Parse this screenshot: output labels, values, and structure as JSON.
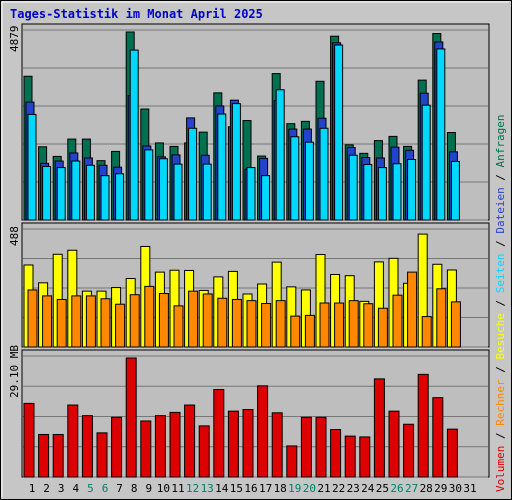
{
  "title": "Tages-Statistik im Monat April 2025",
  "colors": {
    "title": "#0000cc",
    "plot_bg": "#bebebe",
    "grid": "#777777",
    "anfragen": "#007050",
    "dateien": "#2244cc",
    "seiten": "#00d8ff",
    "besuche": "#ffff00",
    "rechner": "#ff8800",
    "volumen": "#dd0000",
    "weekend_day": "#00806a",
    "weekday": "#000000"
  },
  "chart_data": [
    {
      "type": "bar",
      "name": "Anfragen / Dateien / Seiten",
      "ymax_label": "4879",
      "ylim": [
        0,
        4879
      ],
      "categories": [
        "1",
        "2",
        "3",
        "4",
        "5",
        "6",
        "7",
        "8",
        "9",
        "10",
        "11",
        "12",
        "13",
        "14",
        "15",
        "16",
        "17",
        "18",
        "19",
        "20",
        "21",
        "22",
        "23",
        "24",
        "25",
        "26",
        "27",
        "28",
        "29",
        "30"
      ],
      "series": [
        {
          "name": "Anfragen",
          "color": "#007050",
          "values": [
            3730,
            1900,
            1650,
            2100,
            2100,
            1540,
            1780,
            4879,
            2880,
            2000,
            1910,
            2000,
            2280,
            3300,
            2420,
            2580,
            1660,
            3800,
            2500,
            2560,
            3600,
            4770,
            1950,
            1730,
            2060,
            2170,
            1910,
            3630,
            4840,
            2270
          ]
        },
        {
          "name": "Dateien",
          "color": "#2244cc",
          "values": [
            3060,
            1470,
            1530,
            1740,
            1610,
            1420,
            1370,
            3230,
            1920,
            1640,
            1690,
            2650,
            1680,
            2960,
            3110,
            1320,
            1600,
            3100,
            2360,
            2360,
            2640,
            4600,
            1880,
            1620,
            1610,
            1890,
            1810,
            3290,
            4620,
            1770
          ]
        },
        {
          "name": "Seiten",
          "color": "#00d8ff",
          "values": [
            2740,
            1390,
            1360,
            1530,
            1420,
            1150,
            1200,
            4410,
            1820,
            1590,
            1450,
            2380,
            1450,
            2750,
            3020,
            1360,
            1150,
            3380,
            2160,
            2020,
            2380,
            4540,
            1680,
            1440,
            1360,
            1460,
            1570,
            2980,
            4440,
            1520
          ]
        }
      ]
    },
    {
      "type": "bar",
      "name": "Besuche / Rechner",
      "ymax_label": "488",
      "ylim": [
        0,
        488
      ],
      "categories": [
        "1",
        "2",
        "3",
        "4",
        "5",
        "6",
        "7",
        "8",
        "9",
        "10",
        "11",
        "12",
        "13",
        "14",
        "15",
        "16",
        "17",
        "18",
        "19",
        "20",
        "21",
        "22",
        "23",
        "24",
        "25",
        "26",
        "27",
        "28",
        "29",
        "30"
      ],
      "series": [
        {
          "name": "Besuche",
          "color": "#ffff00",
          "values": [
            345,
            270,
            390,
            407,
            235,
            235,
            250,
            288,
            423,
            315,
            323,
            322,
            238,
            295,
            318,
            223,
            265,
            357,
            253,
            240,
            389,
            305,
            300,
            192,
            358,
            373,
            268,
            475,
            348,
            324
          ]
        },
        {
          "name": "Rechner",
          "color": "#ff8800",
          "values": [
            240,
            215,
            200,
            215,
            215,
            203,
            180,
            220,
            255,
            225,
            173,
            235,
            223,
            205,
            200,
            195,
            183,
            195,
            130,
            133,
            185,
            185,
            195,
            182,
            163,
            218,
            315,
            128,
            245,
            190
          ]
        }
      ]
    },
    {
      "type": "bar",
      "name": "Volumen",
      "ymax_label": "29.10 MB",
      "ylim": [
        0,
        29.1
      ],
      "categories": [
        "1",
        "2",
        "3",
        "4",
        "5",
        "6",
        "7",
        "8",
        "9",
        "10",
        "11",
        "12",
        "13",
        "14",
        "15",
        "16",
        "17",
        "18",
        "19",
        "20",
        "21",
        "22",
        "23",
        "24",
        "25",
        "26",
        "27",
        "28",
        "29",
        "30"
      ],
      "series": [
        {
          "name": "Volumen",
          "color": "#dd0000",
          "values": [
            18.0,
            10.4,
            10.4,
            17.6,
            15.0,
            10.8,
            14.6,
            29.1,
            13.7,
            15.0,
            15.8,
            17.6,
            12.5,
            21.4,
            16.1,
            16.5,
            22.3,
            15.7,
            7.6,
            14.6,
            14.6,
            11.6,
            10.0,
            9.8,
            24.0,
            16.1,
            12.9,
            25.1,
            19.4,
            11.7
          ]
        }
      ]
    }
  ],
  "x_axis": {
    "labels": [
      "1",
      "2",
      "3",
      "4",
      "5",
      "6",
      "7",
      "8",
      "9",
      "10",
      "11",
      "12",
      "13",
      "14",
      "15",
      "16",
      "17",
      "18",
      "19",
      "20",
      "21",
      "22",
      "23",
      "24",
      "25",
      "26",
      "27",
      "28",
      "29",
      "30",
      "31"
    ],
    "weekend": [
      "5",
      "6",
      "12",
      "13",
      "19",
      "20",
      "26",
      "27"
    ]
  },
  "side_legend": [
    {
      "text": "Volumen",
      "color": "#dd0000"
    },
    {
      "text": " / ",
      "color": "#000000"
    },
    {
      "text": "Rechner",
      "color": "#ff8800"
    },
    {
      "text": " / ",
      "color": "#000000"
    },
    {
      "text": "Besuche",
      "color": "#ffff00"
    },
    {
      "text": " / ",
      "color": "#000000"
    },
    {
      "text": "Seiten",
      "color": "#00d8ff"
    },
    {
      "text": " / ",
      "color": "#000000"
    },
    {
      "text": "Dateien",
      "color": "#2244cc"
    },
    {
      "text": " / ",
      "color": "#000000"
    },
    {
      "text": "Anfragen",
      "color": "#007050"
    }
  ]
}
